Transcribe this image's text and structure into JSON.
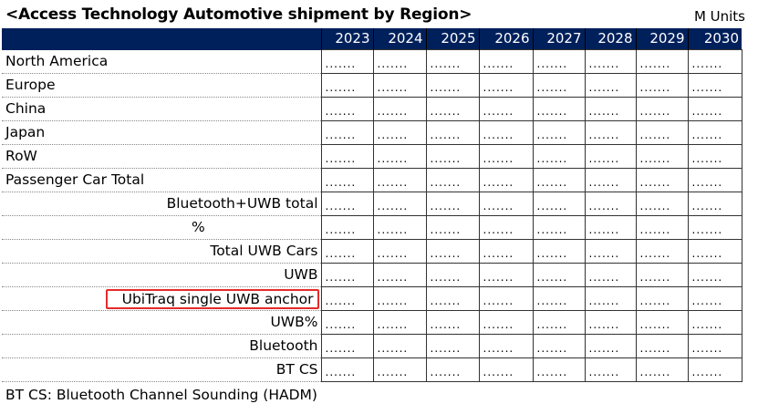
{
  "title": "<Access Technology Automotive shipment by Region>",
  "units": "M Units",
  "years": [
    "2023",
    "2024",
    "2025",
    "2026",
    "2027",
    "2028",
    "2029",
    "2030"
  ],
  "rows": [
    {
      "label": "North America",
      "align": "left",
      "values": [
        ".......",
        ".......",
        ".......",
        ".......",
        ".......",
        ".......",
        ".......",
        "......."
      ]
    },
    {
      "label": "Europe",
      "align": "left",
      "values": [
        ".......",
        ".......",
        ".......",
        ".......",
        ".......",
        ".......",
        ".......",
        "......."
      ]
    },
    {
      "label": "China",
      "align": "left",
      "values": [
        ".......",
        ".......",
        ".......",
        ".......",
        ".......",
        ".......",
        ".......",
        "......."
      ]
    },
    {
      "label": "Japan",
      "align": "left",
      "values": [
        ".......",
        ".......",
        ".......",
        ".......",
        ".......",
        ".......",
        ".......",
        "......."
      ]
    },
    {
      "label": "RoW",
      "align": "left",
      "values": [
        ".......",
        ".......",
        ".......",
        ".......",
        ".......",
        ".......",
        ".......",
        "......."
      ]
    },
    {
      "label": "Passenger Car Total",
      "align": "left",
      "values": [
        ".......",
        ".......",
        ".......",
        ".......",
        ".......",
        ".......",
        ".......",
        "......."
      ]
    },
    {
      "label": "Bluetooth+UWB total",
      "align": "right",
      "values": [
        ".......",
        ".......",
        ".......",
        ".......",
        ".......",
        ".......",
        ".......",
        "......."
      ]
    },
    {
      "label": "%",
      "align": "center",
      "values": [
        ".......",
        ".......",
        ".......",
        ".......",
        ".......",
        ".......",
        ".......",
        "......."
      ]
    },
    {
      "label": "Total UWB Cars",
      "align": "right",
      "values": [
        ".......",
        ".......",
        ".......",
        ".......",
        ".......",
        ".......",
        ".......",
        "......."
      ]
    },
    {
      "label": "UWB",
      "align": "right",
      "values": [
        ".......",
        ".......",
        ".......",
        ".......",
        ".......",
        ".......",
        ".......",
        "......."
      ]
    },
    {
      "label": "UbiTraq single UWB anchor",
      "align": "right",
      "highlight": true,
      "values": [
        ".......",
        ".......",
        ".......",
        ".......",
        ".......",
        ".......",
        ".......",
        "......."
      ]
    },
    {
      "label": "UWB%",
      "align": "right",
      "values": [
        ".......",
        ".......",
        ".......",
        ".......",
        ".......",
        ".......",
        ".......",
        "......."
      ]
    },
    {
      "label": "Bluetooth",
      "align": "right",
      "values": [
        ".......",
        ".......",
        ".......",
        ".......",
        ".......",
        ".......",
        ".......",
        "......."
      ]
    },
    {
      "label": "BT CS",
      "align": "right",
      "values": [
        ".......",
        ".......",
        ".......",
        ".......",
        ".......",
        ".......",
        ".......",
        "......."
      ]
    }
  ],
  "footnote": "BT CS: Bluetooth Channel Sounding (HADM)",
  "colors": {
    "header_bg": "#00205b",
    "highlight_border": "#e52b2b"
  }
}
